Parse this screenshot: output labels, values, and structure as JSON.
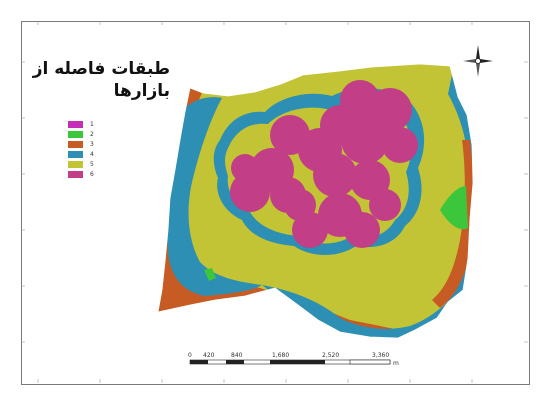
{
  "map": {
    "title_line1": "طبقات فاصله از",
    "title_line2": "بازارها",
    "legend": [
      {
        "label": "1",
        "color": "#c42fb5"
      },
      {
        "label": "2",
        "color": "#3bc63b"
      },
      {
        "label": "3",
        "color": "#c65b23"
      },
      {
        "label": "4",
        "color": "#2d8fb3"
      },
      {
        "label": "5",
        "color": "#c3c435"
      },
      {
        "label": "6",
        "color": "#c23e86"
      }
    ],
    "scalebar": {
      "labels": [
        "0",
        "420",
        "840",
        "1,680",
        "2,520",
        "3,360"
      ],
      "unit": "m"
    },
    "north_arrow_icon": "north-arrow-icon",
    "colors": {
      "class1": "#c42fb5",
      "class2": "#3bc63b",
      "class3": "#c65b23",
      "class4": "#2d8fb3",
      "class5": "#c3c435",
      "class6": "#c23e86"
    }
  }
}
